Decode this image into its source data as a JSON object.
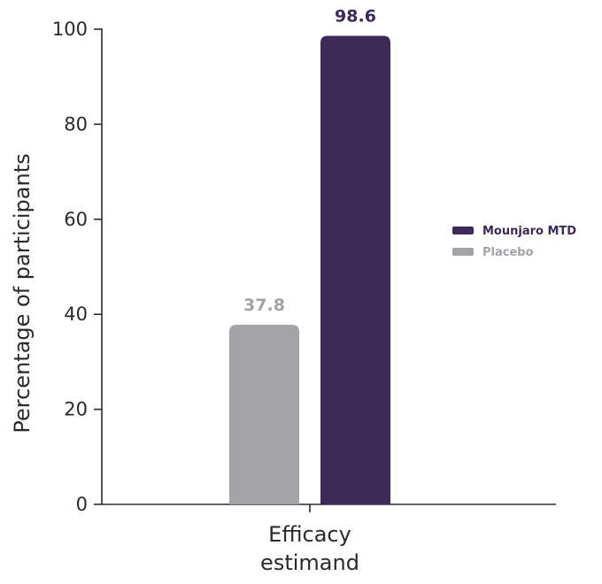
{
  "chart_data": {
    "type": "bar",
    "categories": [
      "Efficacy\nestimand"
    ],
    "series": [
      {
        "name": "Placebo",
        "values": [
          37.8
        ],
        "color": "#a3a3a7",
        "label_color": "#a3a3a7"
      },
      {
        "name": "Mounjaro MTD",
        "values": [
          98.6
        ],
        "color": "#3d2a58",
        "label_color": "#3d2a58"
      }
    ],
    "value_labels": [
      "37.8",
      "98.6"
    ],
    "xlabel": "",
    "ylabel": "Percentage of participants",
    "ylim": [
      0,
      100
    ],
    "yticks": [
      0,
      20,
      40,
      60,
      80,
      100
    ],
    "grid": false,
    "legend": {
      "placement": "right",
      "entries": [
        {
          "label": "Mounjaro MTD",
          "color": "#3d2a58",
          "text_color": "#3d2a58"
        },
        {
          "label": "Placebo",
          "color": "#a3a3a7",
          "text_color": "#a3a3a7"
        }
      ]
    }
  }
}
